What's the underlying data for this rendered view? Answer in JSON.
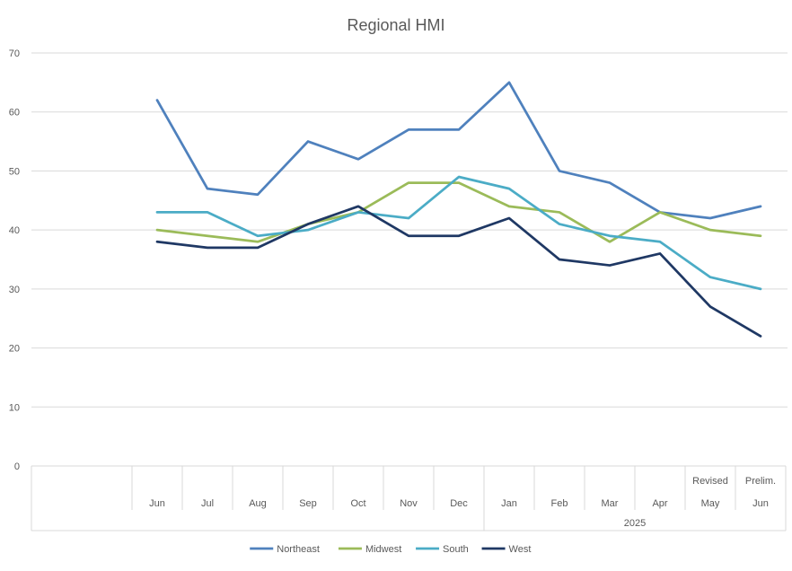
{
  "chart_data": {
    "type": "line",
    "title": "Regional HMI",
    "xlabel": "",
    "ylabel": "",
    "ylim": [
      0,
      70
    ],
    "yticks": [
      0,
      10,
      20,
      30,
      40,
      50,
      60,
      70
    ],
    "grid": true,
    "legend_position": "bottom",
    "categories": [
      {
        "top": "",
        "bottom": "Jun"
      },
      {
        "top": "",
        "bottom": "Jul"
      },
      {
        "top": "",
        "bottom": "Aug"
      },
      {
        "top": "",
        "bottom": "Sep"
      },
      {
        "top": "",
        "bottom": "Oct"
      },
      {
        "top": "",
        "bottom": "Nov"
      },
      {
        "top": "",
        "bottom": "Dec"
      },
      {
        "top": "",
        "bottom": "Jan"
      },
      {
        "top": "",
        "bottom": "Feb"
      },
      {
        "top": "",
        "bottom": "Mar"
      },
      {
        "top": "",
        "bottom": "Apr"
      },
      {
        "top": "Revised",
        "bottom": "May"
      },
      {
        "top": "Prelim.",
        "bottom": "Jun"
      }
    ],
    "groups": [
      {
        "label": "",
        "start": 0,
        "end": 6
      },
      {
        "label": "2025",
        "start": 7,
        "end": 12
      }
    ],
    "series": [
      {
        "name": "Northeast",
        "color": "#4f81bd",
        "values": [
          62,
          47,
          46,
          55,
          52,
          57,
          57,
          65,
          50,
          48,
          43,
          42,
          44
        ]
      },
      {
        "name": "Midwest",
        "color": "#9bbb59",
        "values": [
          40,
          39,
          38,
          41,
          43,
          48,
          48,
          44,
          43,
          38,
          43,
          40,
          39
        ]
      },
      {
        "name": "South",
        "color": "#4bacc6",
        "values": [
          43,
          43,
          39,
          40,
          43,
          42,
          49,
          47,
          41,
          39,
          38,
          32,
          30
        ]
      },
      {
        "name": "West",
        "color": "#1f3864",
        "values": [
          38,
          37,
          37,
          41,
          44,
          39,
          39,
          42,
          35,
          34,
          36,
          27,
          22
        ]
      }
    ]
  }
}
